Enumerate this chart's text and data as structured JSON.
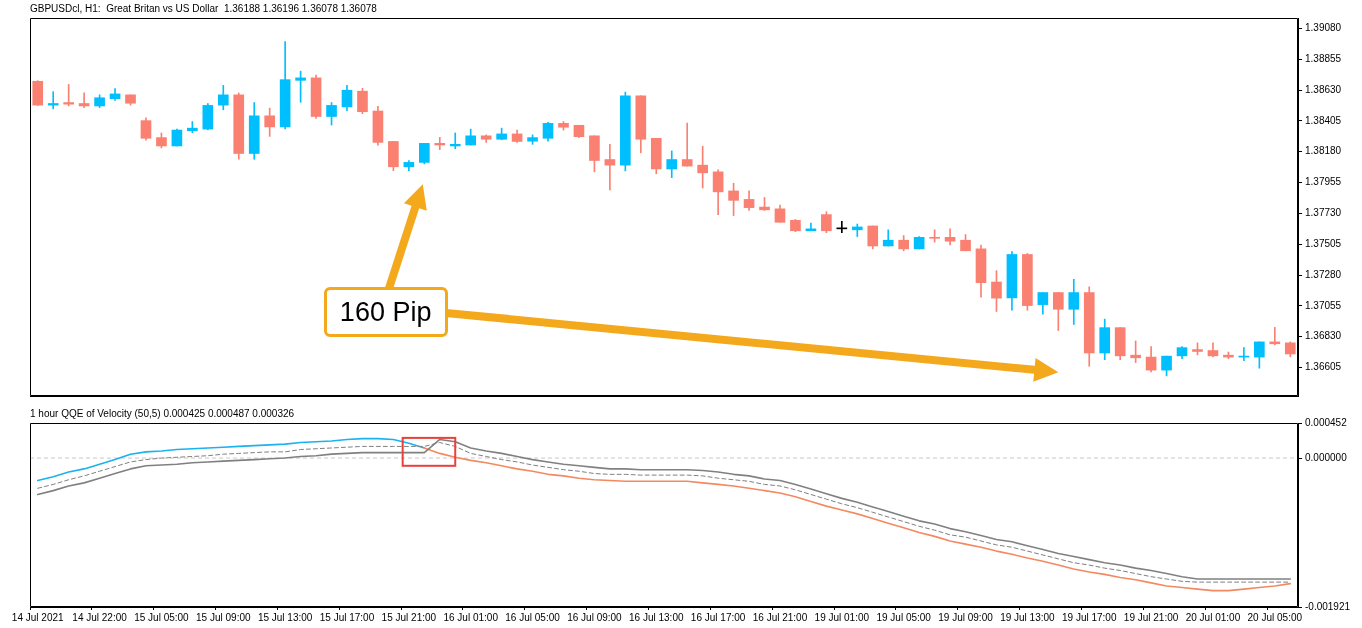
{
  "chart_data": [
    {
      "type": "candlestick",
      "title": "GBPUSDcl, H1:  Great Britan vs US Dollar  1.36188 1.36196 1.36078 1.36078",
      "categories": [
        null,
        null,
        null,
        null,
        null,
        null,
        null,
        null,
        null,
        null,
        null,
        null,
        null,
        null,
        null,
        null,
        null,
        null,
        null,
        null,
        null,
        null,
        null,
        null,
        null,
        null,
        null,
        null,
        null,
        null,
        null,
        null,
        null,
        null,
        null,
        null,
        null,
        null,
        null,
        null,
        null,
        null,
        null,
        null,
        null,
        null,
        null,
        null,
        null,
        null,
        null,
        null,
        null,
        null,
        null,
        null,
        null,
        null,
        null,
        null,
        null,
        null,
        null,
        null,
        null,
        null,
        null,
        null,
        null,
        null,
        null,
        null,
        null,
        null,
        null,
        null,
        null,
        null,
        null,
        null,
        null,
        null
      ],
      "ohlc": [
        [
          1.38694,
          1.38699,
          1.38518,
          1.3852
        ],
        [
          1.3852,
          1.38618,
          1.38493,
          1.38532
        ],
        [
          1.38539,
          1.38671,
          1.38514,
          1.38527
        ],
        [
          1.38532,
          1.38609,
          1.38502,
          1.38514
        ],
        [
          1.38514,
          1.38595,
          1.38502,
          1.38574
        ],
        [
          1.38567,
          1.38641,
          1.38555,
          1.38602
        ],
        [
          1.38595,
          1.38595,
          1.3852,
          1.38534
        ],
        [
          1.38407,
          1.38428,
          1.38264,
          1.38278
        ],
        [
          1.38283,
          1.38317,
          1.38208,
          1.38222
        ],
        [
          1.38222,
          1.38345,
          1.38222,
          1.38338
        ],
        [
          1.38333,
          1.384,
          1.38319,
          1.38352
        ],
        [
          1.38345,
          1.38532,
          1.3834,
          1.38518
        ],
        [
          1.3852,
          1.38664,
          1.38486,
          1.38595
        ],
        [
          1.38595,
          1.38609,
          1.38125,
          1.38167
        ],
        [
          1.38167,
          1.38539,
          1.38125,
          1.38442
        ],
        [
          1.38442,
          1.38498,
          1.38292,
          1.38361
        ],
        [
          1.38361,
          1.38983,
          1.38347,
          1.38706
        ],
        [
          1.38701,
          1.38768,
          1.38541,
          1.38719
        ],
        [
          1.38719,
          1.3874,
          1.38423,
          1.38437
        ],
        [
          1.38437,
          1.38539,
          1.38375,
          1.38518
        ],
        [
          1.38507,
          1.38664,
          1.38479,
          1.38629
        ],
        [
          1.38622,
          1.38643,
          1.38458,
          1.38472
        ],
        [
          1.38477,
          1.38511,
          1.38227,
          1.38248
        ],
        [
          1.38255,
          1.38255,
          1.38042,
          1.3807
        ],
        [
          1.3807,
          1.38116,
          1.38042,
          1.38102
        ],
        [
          1.38102,
          1.38241,
          1.38091,
          1.38241
        ],
        [
          1.38241,
          1.38285,
          1.38195,
          1.38229
        ],
        [
          1.38222,
          1.38317,
          1.38202,
          1.38234
        ],
        [
          1.38229,
          1.38345,
          1.38229,
          1.38296
        ],
        [
          1.38296,
          1.38303,
          1.38248,
          1.38271
        ],
        [
          1.38271,
          1.38352,
          1.38267,
          1.3831
        ],
        [
          1.3831,
          1.38338,
          1.38248,
          1.38255
        ],
        [
          1.38257,
          1.38303,
          1.38234,
          1.38283
        ],
        [
          1.38278,
          1.38394,
          1.38257,
          1.38387
        ],
        [
          1.38387,
          1.384,
          1.38338,
          1.38359
        ],
        [
          1.38373,
          1.38373,
          1.38283,
          1.3829
        ],
        [
          1.38296,
          1.38296,
          1.38033,
          1.38116
        ],
        [
          1.38123,
          1.38234,
          1.37901,
          1.38082
        ],
        [
          1.38082,
          1.38615,
          1.3804,
          1.38588
        ],
        [
          1.38588,
          1.38588,
          1.38172,
          1.38271
        ],
        [
          1.38278,
          1.38278,
          1.38019,
          1.38054
        ],
        [
          1.38054,
          1.38186,
          1.37991,
          1.38123
        ],
        [
          1.38123,
          1.38389,
          1.38075,
          1.38075
        ],
        [
          1.38082,
          1.3822,
          1.37915,
          1.38026
        ],
        [
          1.38033,
          1.38047,
          1.37721,
          1.37887
        ],
        [
          1.37894,
          1.3795,
          1.37714,
          1.37825
        ],
        [
          1.37832,
          1.37894,
          1.37751,
          1.37772
        ],
        [
          1.37776,
          1.37846,
          1.37751,
          1.37756
        ],
        [
          1.37763,
          1.3779,
          1.37665,
          1.37665
        ],
        [
          1.37679,
          1.37686,
          1.37596,
          1.37603
        ],
        [
          1.37603,
          1.37659,
          1.37603,
          1.37617
        ],
        [
          1.37721,
          1.37742,
          1.37589,
          1.37603
        ],
        [
          1.37617,
          1.37672,
          1.37589,
          1.37617
        ],
        [
          1.3761,
          1.37652,
          1.37561,
          1.37631
        ],
        [
          1.37638,
          1.37638,
          1.37471,
          1.37492
        ],
        [
          1.37492,
          1.3761,
          1.37492,
          1.37534
        ],
        [
          1.37534,
          1.37568,
          1.37457,
          1.37471
        ],
        [
          1.37471,
          1.37561,
          1.37471,
          1.37555
        ],
        [
          1.37555,
          1.3761,
          1.3752,
          1.37548
        ],
        [
          1.37555,
          1.37617,
          1.37499,
          1.37527
        ],
        [
          1.37534,
          1.37575,
          1.37457,
          1.37457
        ],
        [
          1.37471,
          1.37499,
          1.37118,
          1.37224
        ],
        [
          1.37229,
          1.37312,
          1.37014,
          1.37111
        ],
        [
          1.37113,
          1.37451,
          1.37023,
          1.3743
        ],
        [
          1.3743,
          1.37437,
          1.37023,
          1.37057
        ],
        [
          1.37064,
          1.37152,
          1.36995,
          1.37152
        ],
        [
          1.37152,
          1.37152,
          1.36875,
          1.3703
        ],
        [
          1.3703,
          1.37249,
          1.36919,
          1.37152
        ],
        [
          1.37152,
          1.37194,
          1.36614,
          1.36711
        ],
        [
          1.36711,
          1.36958,
          1.36662,
          1.36896
        ],
        [
          1.36896,
          1.36896,
          1.36662,
          1.3669
        ],
        [
          1.36695,
          1.36799,
          1.36641,
          1.36676
        ],
        [
          1.36681,
          1.36757,
          1.36572,
          1.36586
        ],
        [
          1.36586,
          1.36688,
          1.36544,
          1.36688
        ],
        [
          1.3669,
          1.36757,
          1.36669,
          1.3675
        ],
        [
          1.36736,
          1.36785,
          1.36697,
          1.36722
        ],
        [
          1.36729,
          1.36785,
          1.36683,
          1.3669
        ],
        [
          1.36695,
          1.36718,
          1.36669,
          1.36681
        ],
        [
          1.36681,
          1.3675,
          1.36655,
          1.36688
        ],
        [
          1.36681,
          1.36792,
          1.366,
          1.36792
        ],
        [
          1.36792,
          1.36898,
          1.36771,
          1.36778
        ],
        [
          1.36785,
          1.36792,
          1.36683,
          1.36704
        ]
      ],
      "colors": [
        "#fa8072",
        "#00bfff",
        "#fa8072",
        "#fa8072",
        "#00bfff",
        "#00bfff",
        "#fa8072",
        "#fa8072",
        "#fa8072",
        "#00bfff",
        "#00bfff",
        "#00bfff",
        "#00bfff",
        "#fa8072",
        "#00bfff",
        "#fa8072",
        "#00bfff",
        "#00bfff",
        "#fa8072",
        "#00bfff",
        "#00bfff",
        "#fa8072",
        "#fa8072",
        "#fa8072",
        "#00bfff",
        "#00bfff",
        "#fa8072",
        "#00bfff",
        "#00bfff",
        "#fa8072",
        "#00bfff",
        "#fa8072",
        "#00bfff",
        "#00bfff",
        "#fa8072",
        "#fa8072",
        "#fa8072",
        "#fa8072",
        "#00bfff",
        "#fa8072",
        "#fa8072",
        "#00bfff",
        "#fa8072",
        "#fa8072",
        "#fa8072",
        "#fa8072",
        "#fa8072",
        "#fa8072",
        "#fa8072",
        "#fa8072",
        "#00bfff",
        "#fa8072",
        "#000000",
        "#00bfff",
        "#fa8072",
        "#00bfff",
        "#fa8072",
        "#00bfff",
        "#fa8072",
        "#fa8072",
        "#fa8072",
        "#fa8072",
        "#fa8072",
        "#00bfff",
        "#fa8072",
        "#00bfff",
        "#fa8072",
        "#00bfff",
        "#fa8072",
        "#00bfff",
        "#fa8072",
        "#fa8072",
        "#fa8072",
        "#00bfff",
        "#00bfff",
        "#fa8072",
        "#fa8072",
        "#fa8072",
        "#00bfff",
        "#00bfff",
        "#fa8072",
        "#fa8072"
      ],
      "ylim": [
        1.36397,
        1.39156
      ],
      "yticks": [
        {
          "value": 1.3908,
          "label": "1.39080"
        },
        {
          "value": 1.38855,
          "label": "1.38855"
        },
        {
          "value": 1.3863,
          "label": "1.38630"
        },
        {
          "value": 1.38405,
          "label": "1.38405"
        },
        {
          "value": 1.3818,
          "label": "1.38180"
        },
        {
          "value": 1.37955,
          "label": "1.37955"
        },
        {
          "value": 1.3773,
          "label": "1.37730"
        },
        {
          "value": 1.37505,
          "label": "1.37505"
        },
        {
          "value": 1.3728,
          "label": "1.37280"
        },
        {
          "value": 1.37055,
          "label": "1.37055"
        },
        {
          "value": 1.3683,
          "label": "1.36830"
        },
        {
          "value": 1.36605,
          "label": "1.36605"
        }
      ],
      "tick_labels": "y",
      "annotations": [
        "160 Pip"
      ]
    },
    {
      "type": "line",
      "title": "1 hour QQE of Velocity (50,5) 0.000425 0.000487 0.000326",
      "categories": [
        "14 Jul 2021",
        null,
        null,
        null,
        "14 Jul 22:00",
        null,
        null,
        null,
        "15 Jul 05:00",
        null,
        null,
        null,
        "15 Jul 09:00",
        null,
        null,
        null,
        "15 Jul 13:00",
        null,
        null,
        null,
        "15 Jul 17:00",
        null,
        null,
        null,
        "15 Jul 21:00",
        null,
        null,
        null,
        "16 Jul 01:00",
        null,
        null,
        null,
        "16 Jul 05:00",
        null,
        null,
        null,
        "16 Jul 09:00",
        null,
        null,
        null,
        "16 Jul 13:00",
        null,
        null,
        null,
        "16 Jul 17:00",
        null,
        null,
        null,
        "16 Jul 21:00",
        null,
        null,
        null,
        "19 Jul 01:00",
        null,
        null,
        null,
        "19 Jul 05:00",
        null,
        null,
        null,
        "19 Jul 09:00",
        null,
        null,
        null,
        "19 Jul 13:00",
        null,
        null,
        null,
        "19 Jul 17:00",
        null,
        null,
        null,
        "19 Jul 21:00",
        null,
        null,
        null,
        "20 Jul 01:00",
        null,
        null,
        null,
        "20 Jul 05:00",
        null
      ],
      "series": [
        {
          "color": "#1ab2ef",
          "values": [
            -0.00029,
            -0.00024,
            -0.00018,
            -0.00014,
            -8e-05,
            -2e-05,
            5e-05,
            8e-05,
            9e-05,
            0.00011,
            0.00012,
            0.00013,
            0.00014,
            0.00015,
            0.00016,
            0.00017,
            0.00018,
            0.0002,
            0.00021,
            0.00022,
            0.00024,
            0.00025,
            0.00025,
            0.00024,
            0.00019,
            0.00013,
            null,
            null,
            null,
            null,
            null,
            null,
            null,
            null,
            null,
            null,
            null,
            null,
            null,
            null,
            null,
            null,
            null,
            null,
            null,
            null,
            null,
            null,
            null,
            null,
            null,
            null,
            null,
            null,
            null,
            null,
            null,
            null,
            null,
            null,
            null,
            null,
            null,
            null,
            null,
            null,
            null,
            null,
            null,
            null,
            null,
            null,
            null,
            null,
            null,
            null,
            null,
            null,
            null,
            null,
            null,
            null
          ]
        },
        {
          "color": "#f4895f",
          "values": [
            null,
            null,
            null,
            null,
            null,
            null,
            null,
            null,
            null,
            null,
            null,
            null,
            null,
            null,
            null,
            null,
            null,
            null,
            null,
            null,
            null,
            null,
            null,
            null,
            null,
            0.00013,
            6e-05,
            1e-05,
            -3e-05,
            -6e-05,
            -0.0001,
            -0.00014,
            -0.00017,
            -0.00021,
            -0.00023,
            -0.00026,
            -0.00028,
            -0.00029,
            -0.0003,
            -0.0003,
            -0.0003,
            -0.0003,
            -0.0003,
            -0.00032,
            -0.00034,
            -0.00036,
            -0.00039,
            -0.00042,
            -0.00045,
            -0.0005,
            -0.00056,
            -0.00062,
            -0.00067,
            -0.00072,
            -0.00078,
            -0.00084,
            -0.0009,
            -0.00096,
            -0.00101,
            -0.00107,
            -0.00111,
            -0.00115,
            -0.0012,
            -0.00124,
            -0.00129,
            -0.00133,
            -0.00138,
            -0.00143,
            -0.00147,
            -0.0015,
            -0.00154,
            -0.00157,
            -0.00161,
            -0.00165,
            -0.00167,
            -0.00169,
            -0.00171,
            -0.00171,
            -0.00169,
            -0.00167,
            -0.00165,
            -0.00162
          ]
        },
        {
          "color": "#808080",
          "line_style": "dashed",
          "values": [
            -0.00039,
            -0.00034,
            -0.00028,
            -0.00023,
            -0.00017,
            -0.00011,
            -5e-05,
            -2e-05,
            0,
            1e-05,
            2e-05,
            3e-05,
            5e-05,
            6e-05,
            7e-05,
            8e-05,
            8e-05,
            0.00011,
            0.00012,
            0.00013,
            0.00014,
            0.00015,
            0.00015,
            0.00015,
            0.00015,
            0.00015,
            0.0002,
            0.00015,
            6e-05,
            2e-05,
            -2e-05,
            -5e-05,
            -9e-05,
            -0.00012,
            -0.00015,
            -0.00017,
            -0.0002,
            -0.00021,
            -0.00021,
            -0.00022,
            -0.00022,
            -0.00022,
            -0.00022,
            -0.00023,
            -0.00026,
            -0.00028,
            -0.0003,
            -0.00034,
            -0.00036,
            -0.00041,
            -0.00047,
            -0.00053,
            -0.00059,
            -0.00064,
            -0.0007,
            -0.00076,
            -0.00082,
            -0.00088,
            -0.00093,
            -0.00099,
            -0.00102,
            -0.00107,
            -0.00112,
            -0.00115,
            -0.0012,
            -0.00125,
            -0.0013,
            -0.00135,
            -0.00138,
            -0.00142,
            -0.00145,
            -0.00149,
            -0.00153,
            -0.00156,
            -0.00159,
            -0.0016,
            -0.0016,
            -0.0016,
            -0.0016,
            -0.0016,
            -0.0016,
            -0.0016
          ]
        },
        {
          "color": "#808080",
          "values": [
            -0.00047,
            -0.00042,
            -0.00036,
            -0.00032,
            -0.00026,
            -0.0002,
            -0.00014,
            -0.0001,
            -9e-05,
            -8e-05,
            -6e-05,
            -5e-05,
            -4e-05,
            -3e-05,
            -2e-05,
            -1e-05,
            0,
            2e-05,
            3e-05,
            5e-05,
            6e-05,
            7e-05,
            7e-05,
            7e-05,
            7e-05,
            7e-05,
            0.00024,
            0.00021,
            0.00013,
            9e-05,
            6e-05,
            2e-05,
            -2e-05,
            -5e-05,
            -8e-05,
            -0.0001,
            -0.00012,
            -0.00014,
            -0.00014,
            -0.00015,
            -0.00015,
            -0.00015,
            -0.00015,
            -0.00016,
            -0.00018,
            -0.00021,
            -0.00023,
            -0.00027,
            -0.00029,
            -0.00034,
            -0.0004,
            -0.00046,
            -0.00052,
            -0.00057,
            -0.00063,
            -0.00069,
            -0.00075,
            -0.00081,
            -0.00085,
            -0.00091,
            -0.00095,
            -0.001,
            -0.00105,
            -0.00108,
            -0.00113,
            -0.00118,
            -0.00123,
            -0.00127,
            -0.00131,
            -0.00135,
            -0.00138,
            -0.00142,
            -0.00145,
            -0.00149,
            -0.00153,
            -0.00156,
            -0.00156,
            -0.00156,
            -0.00156,
            -0.00156,
            -0.00156,
            -0.00156
          ]
        }
      ],
      "ylim": [
        -0.001921,
        0.000452
      ],
      "yticks": [
        0.000452,
        {
          "value": 0,
          "label": "0.000000"
        },
        -0.001921
      ],
      "ref_lines": [
        {
          "axis": "y",
          "value": 0,
          "color": "#c8c8c8",
          "line_style": "dashed"
        }
      ]
    }
  ]
}
